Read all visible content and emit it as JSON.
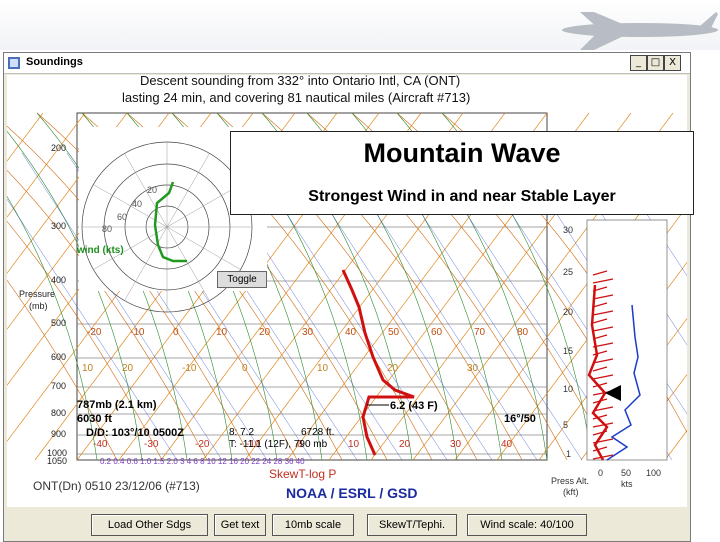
{
  "window": {
    "title": "Soundings",
    "controls": [
      "_",
      "□",
      "X"
    ]
  },
  "header": {
    "line1": "Descent sounding from 332° into Ontario Intl, CA (ONT)",
    "line2": "lasting 24 min, and covering 81 nautical miles (Aircraft #713)"
  },
  "banner": {
    "title": "Mountain Wave",
    "subtitle": "Strongest Wind in and near Stable Layer"
  },
  "hodograph": {
    "rings": [
      "80",
      "60",
      "40",
      "20"
    ],
    "label": "wind (kts)",
    "toggle_label": "Toggle"
  },
  "left_axis": {
    "pressure_ticks": [
      "200",
      "300",
      "400",
      "500",
      "600",
      "700",
      "800",
      "900",
      "1000",
      "1050"
    ],
    "title_line1": "Pressure",
    "title_line2": "(mb)"
  },
  "upper_temp_ticks": [
    "-20",
    "-10",
    "0",
    "10",
    "20",
    "30",
    "40",
    "50",
    "60",
    "70",
    "80"
  ],
  "mixing_ticks": [
    "10",
    "20",
    "-10",
    "0",
    "10",
    "20",
    "30"
  ],
  "lower_temp_ticks": [
    "-40",
    "-30",
    "-20",
    "-10",
    "0",
    "10",
    "20",
    "30",
    "40"
  ],
  "bottom_ticks": "0.2    0.4  0.6  1.0    1.5  2.0     3  4    6  8  10  12  16  20  22  24  28  36  40",
  "annotations": {
    "level_1": "787mb (2.1 km)",
    "level_2": "6030 ft",
    "dir_dd": "D/D: 103°/10 0500Z",
    "mid_1": "8: 7.2",
    "mid_2": "6728 ft.",
    "mid_3": "T: -11.1 (12F), 790 mb",
    "temp": "6.2 (43 F)",
    "wind": "16°/50"
  },
  "right_axis": {
    "ticks": [
      "30",
      "25",
      "20",
      "15",
      "10",
      "5",
      "1"
    ],
    "x_ticks": [
      "0",
      "50",
      "100"
    ],
    "x_unit": "kts",
    "y_title_line1": "Press Alt.",
    "y_title_line2": "(kft)"
  },
  "footer": {
    "flight": "ONT(Dn) 0510 23/12/06 (#713)",
    "diagram_type": "SkewT-log P",
    "org": "NOAA / ESRL / GSD"
  },
  "buttons": {
    "load_other": "Load Other Sdgs",
    "get_text": "Get text",
    "scale_10mb": "10mb scale",
    "skewt": "SkewT/Tephi.",
    "wind_scale": "Wind scale: 40/100"
  },
  "colors": {
    "temperature": "#d01010",
    "dewpoint": "#1a3cc8",
    "isotherm": "#e08a20",
    "dry_adiabat": "#d06a10",
    "moist_adiabat": "#2c8a2c",
    "mixing_ratio": "#7a3cc0",
    "footer_blue": "#1a2aa0",
    "footer_red": "#c03020"
  }
}
